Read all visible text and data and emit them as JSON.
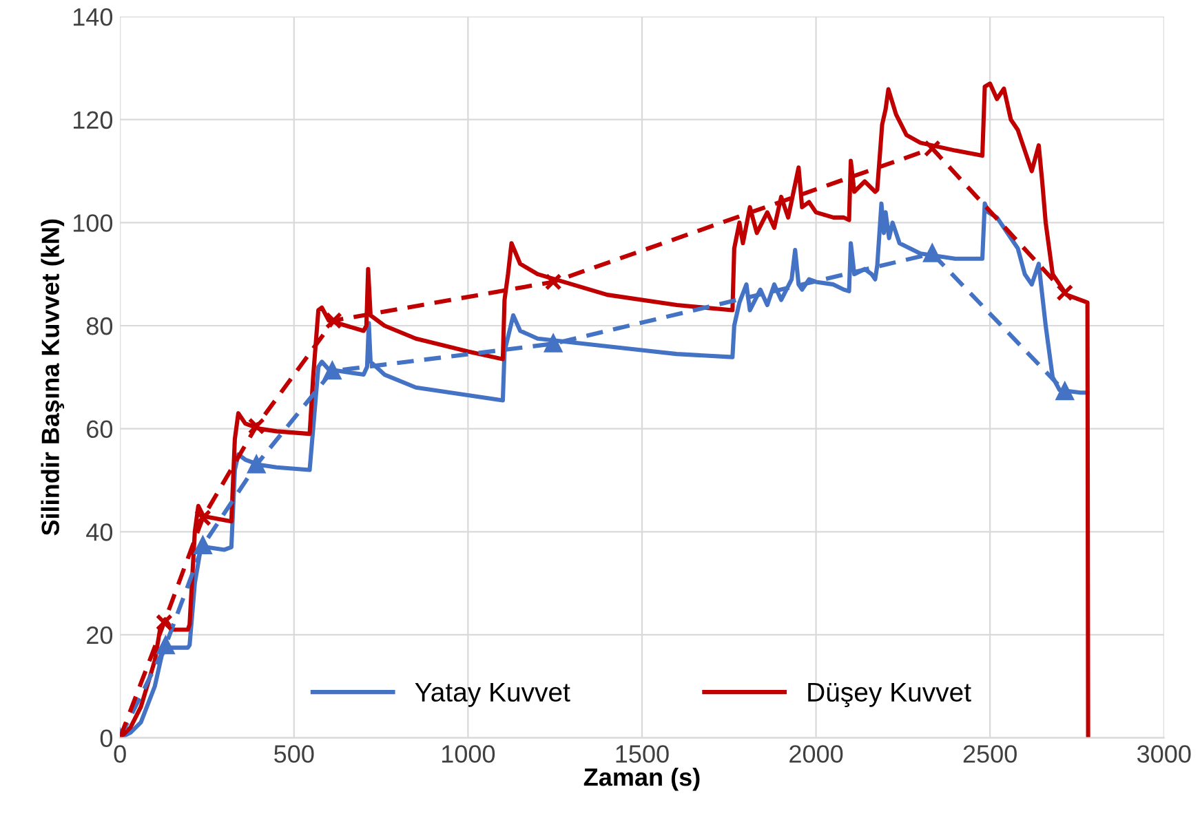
{
  "chart_data": {
    "type": "line",
    "xlabel": "Zaman (s)",
    "ylabel": "Silindir Başına Kuvvet (kN)",
    "xlim": [
      0,
      3000
    ],
    "ylim": [
      0,
      140
    ],
    "xticks": [
      0,
      500,
      1000,
      1500,
      2000,
      2500,
      3000
    ],
    "yticks": [
      0,
      20,
      40,
      60,
      80,
      100,
      120,
      140
    ],
    "grid": true,
    "legend": "bottom",
    "series": [
      {
        "name": "Yatay Kuvvet",
        "color": "#4472c4",
        "line_style": "solid",
        "marker": "none",
        "x": [
          0,
          30,
          60,
          100,
          120,
          135,
          145,
          195,
          200,
          215,
          230,
          250,
          300,
          320,
          330,
          340,
          360,
          400,
          450,
          545,
          555,
          570,
          580,
          600,
          700,
          710,
          715,
          720,
          760,
          850,
          1000,
          1100,
          1105,
          1130,
          1150,
          1200,
          1400,
          1600,
          1760,
          1765,
          1780,
          1800,
          1810,
          1840,
          1860,
          1880,
          1900,
          1930,
          1940,
          1950,
          1960,
          1980,
          2000,
          2050,
          2080,
          2095,
          2100,
          2110,
          2140,
          2160,
          2170,
          2176,
          2188,
          2195,
          2200,
          2210,
          2220,
          2240,
          2300,
          2400,
          2478,
          2485,
          2495,
          2520,
          2550,
          2580,
          2600,
          2620,
          2640,
          2650,
          2660,
          2680,
          2700,
          2760,
          2780
        ],
        "values": [
          0,
          1,
          3,
          10,
          16,
          18,
          17.5,
          17.5,
          18,
          30,
          36,
          37,
          36.5,
          37,
          52,
          55,
          54,
          53,
          52.5,
          52,
          60,
          72,
          73,
          71.5,
          70.5,
          72,
          80.5,
          73,
          70.5,
          68,
          66.5,
          65.5,
          75,
          82,
          79,
          77.5,
          76,
          74.5,
          73.9,
          80,
          84.5,
          88,
          83,
          87,
          84,
          88,
          85,
          89,
          94.7,
          88,
          87,
          89,
          88.5,
          88,
          87,
          86.7,
          96,
          90,
          91,
          90,
          89,
          91.7,
          103.7,
          98,
          102,
          97,
          100,
          96,
          94,
          93,
          93,
          103.7,
          102,
          101,
          98,
          95,
          90,
          88,
          92,
          86,
          80,
          70,
          67.5,
          67,
          67
        ]
      },
      {
        "name": "Düşey Kuvvet",
        "color": "#c00000",
        "line_style": "solid",
        "marker": "none",
        "x": [
          0,
          30,
          60,
          100,
          115,
          130,
          150,
          195,
          200,
          215,
          225,
          240,
          320,
          330,
          340,
          360,
          400,
          450,
          545,
          555,
          570,
          580,
          600,
          700,
          708,
          713,
          720,
          760,
          850,
          1000,
          1100,
          1105,
          1115,
          1125,
          1150,
          1200,
          1400,
          1600,
          1760,
          1765,
          1780,
          1790,
          1810,
          1830,
          1860,
          1880,
          1900,
          1920,
          1950,
          1960,
          1980,
          2000,
          2050,
          2080,
          2095,
          2100,
          2110,
          2140,
          2170,
          2176,
          2190,
          2200,
          2208,
          2230,
          2260,
          2300,
          2400,
          2478,
          2485,
          2500,
          2520,
          2540,
          2560,
          2580,
          2600,
          2620,
          2640,
          2650,
          2660,
          2680,
          2700,
          2720,
          2780,
          2782
        ],
        "values": [
          0,
          2,
          6,
          15,
          21,
          23,
          21,
          21,
          22,
          40,
          45,
          43,
          42,
          58,
          63,
          61,
          60,
          59.5,
          59,
          70,
          83,
          83.5,
          81,
          79,
          80,
          91,
          82,
          80,
          77.5,
          75,
          73.5,
          85,
          90,
          96,
          92,
          90,
          86,
          84,
          83,
          95,
          100,
          96,
          103,
          98,
          102,
          99,
          105,
          101,
          110.7,
          103,
          104,
          102,
          101,
          101,
          100.5,
          112,
          106,
          108,
          106,
          106.4,
          119,
          122,
          125.9,
          121,
          117,
          115.5,
          114,
          113,
          126.4,
          127,
          124,
          126,
          120,
          118,
          114,
          110,
          115,
          108,
          100,
          90,
          88,
          86,
          84.5,
          0
        ]
      },
      {
        "color": "#4472c4",
        "line_style": "dashed",
        "marker": "triangle",
        "x": [
          0,
          131,
          238,
          392,
          610,
          1245,
          2334,
          2715
        ],
        "values": [
          0,
          17.9,
          37.3,
          53,
          71.2,
          76.5,
          94,
          67.2
        ]
      },
      {
        "color": "#c00000",
        "line_style": "dashed",
        "marker": "cross",
        "x": [
          0,
          127,
          238,
          392,
          614,
          1245,
          2334,
          2715
        ],
        "values": [
          0,
          22.4,
          42.7,
          60.5,
          81,
          88.5,
          114.4,
          86.4
        ]
      }
    ]
  }
}
